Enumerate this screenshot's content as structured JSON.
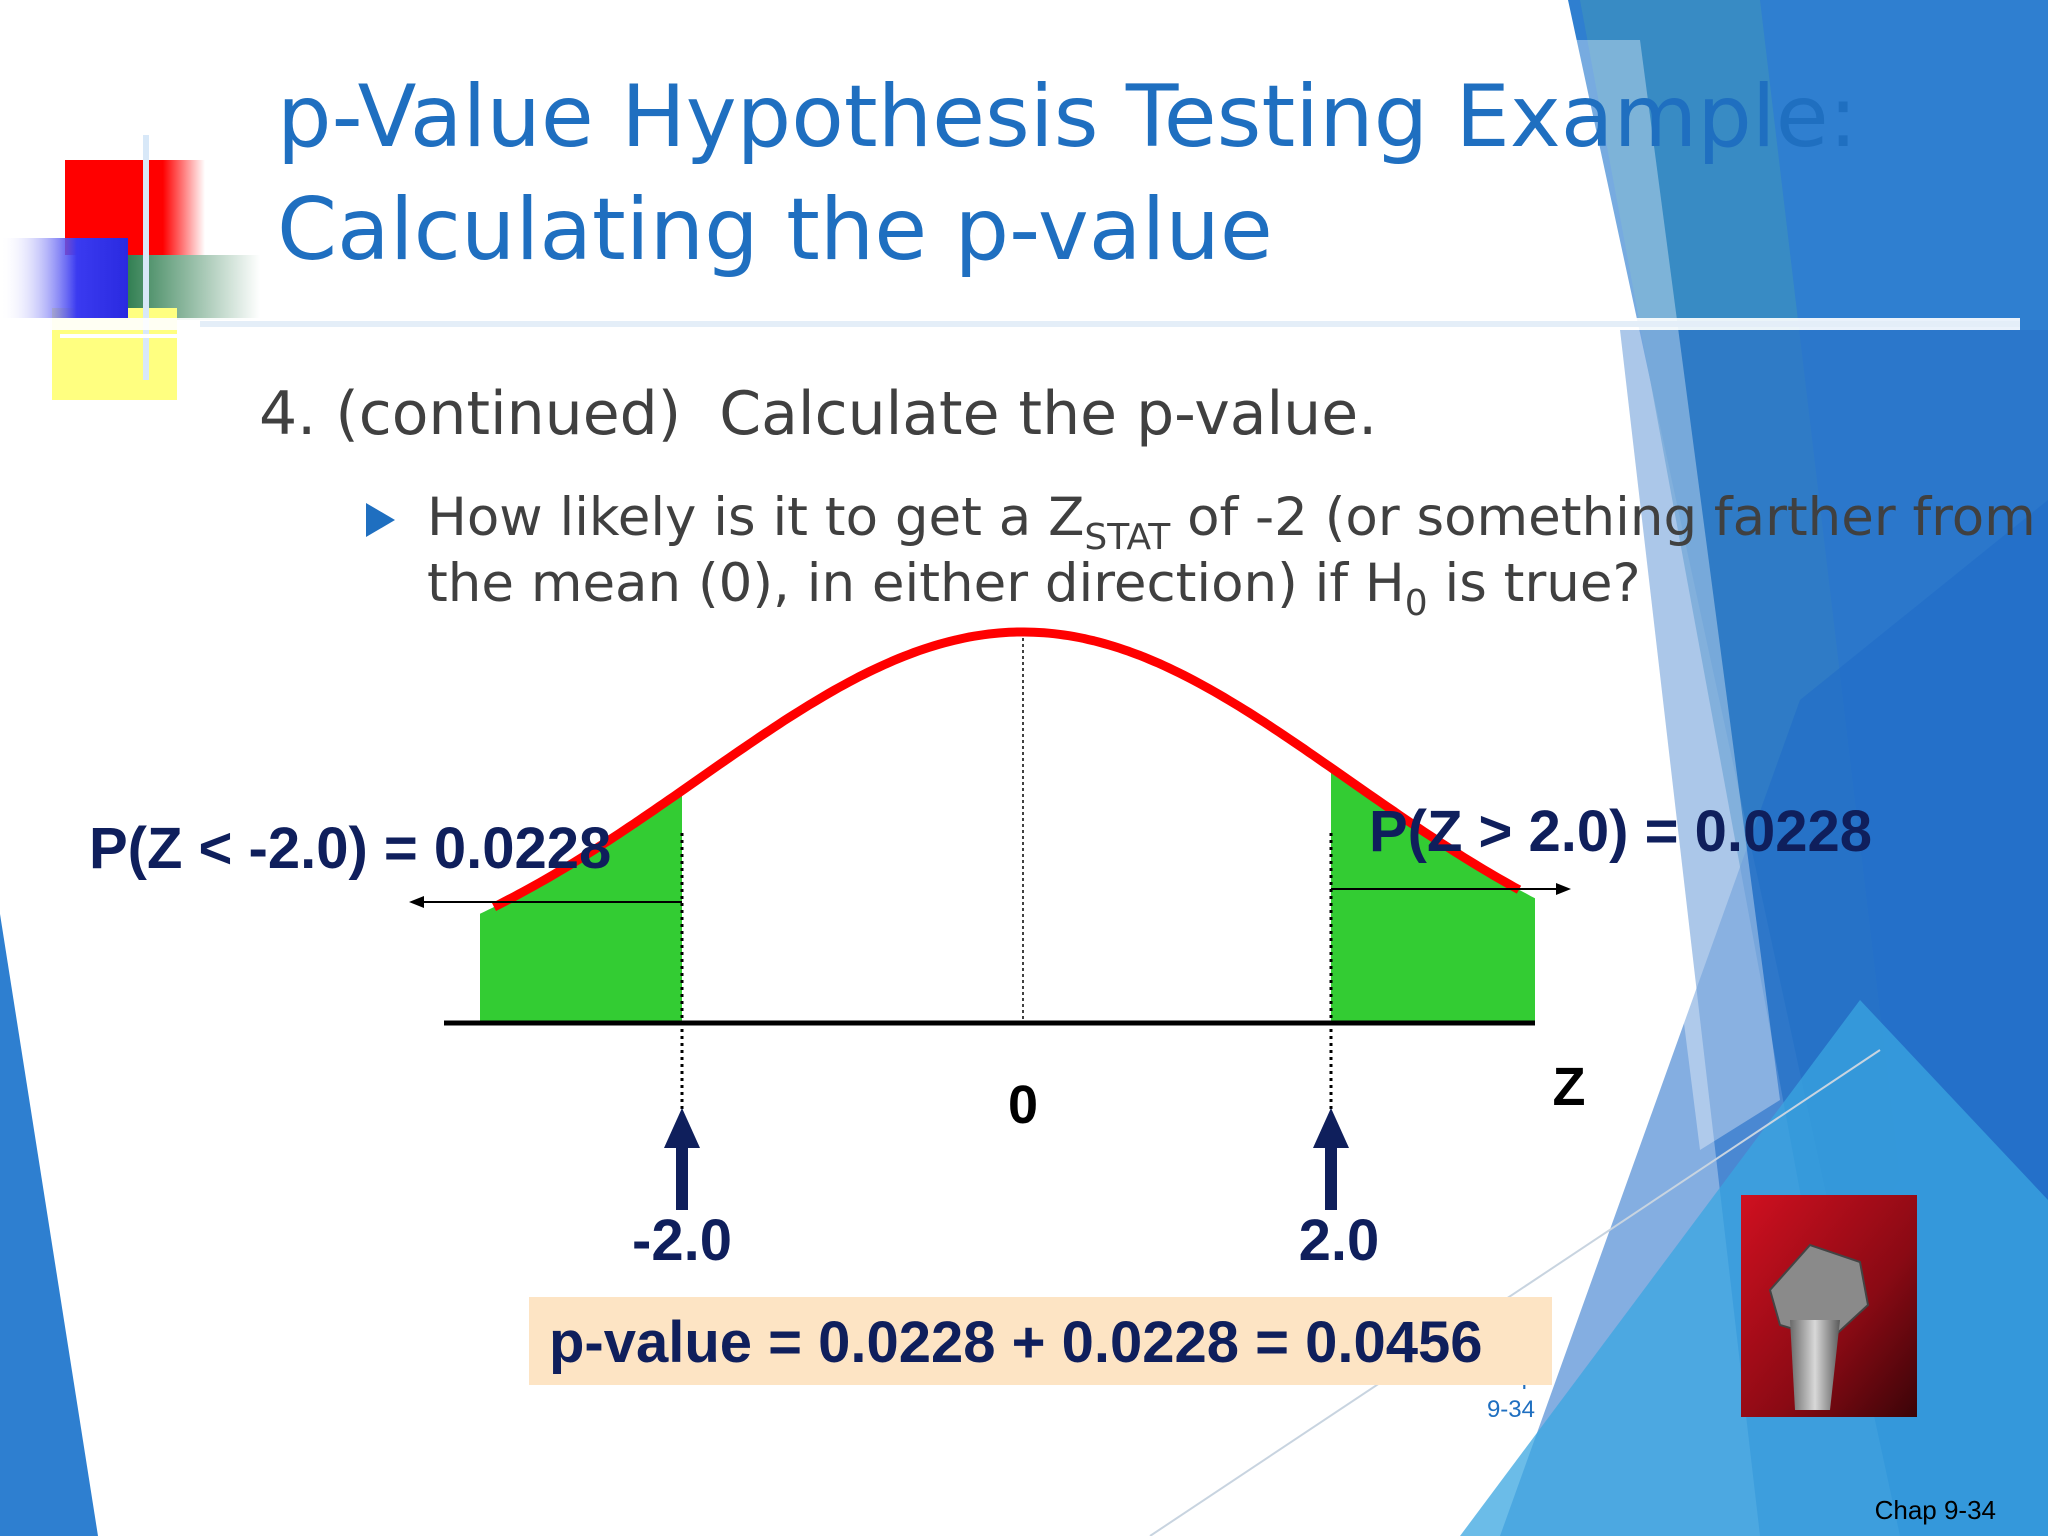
{
  "title": {
    "line1": "p-Value Hypothesis Testing Example:",
    "line2": "Calculating the p-value"
  },
  "heading": "4. (continued)  Calculate the p-value.",
  "bullet": {
    "line1": {
      "before": "How likely is it to get a Z",
      "sub": "STAT",
      "after": " of -2 (or something farther from"
    },
    "line2": {
      "before": "the mean (0), in either direction) if H",
      "sub": "0",
      "after": " is true?"
    }
  },
  "diagram": {
    "left_probability": "P(Z < -2.0) = 0.0228",
    "right_probability": "P(Z > 2.0) = 0.0228",
    "mean_label": "0",
    "axis_label": "Z",
    "left_cut": "-2.0",
    "right_cut": "2.0"
  },
  "result": "p-value = 0.0228 + 0.0228 = 0.0456",
  "footer": {
    "ref_line1": "Chap",
    "ref_line2": "9-34",
    "page_label": "Chap 9-34"
  }
}
